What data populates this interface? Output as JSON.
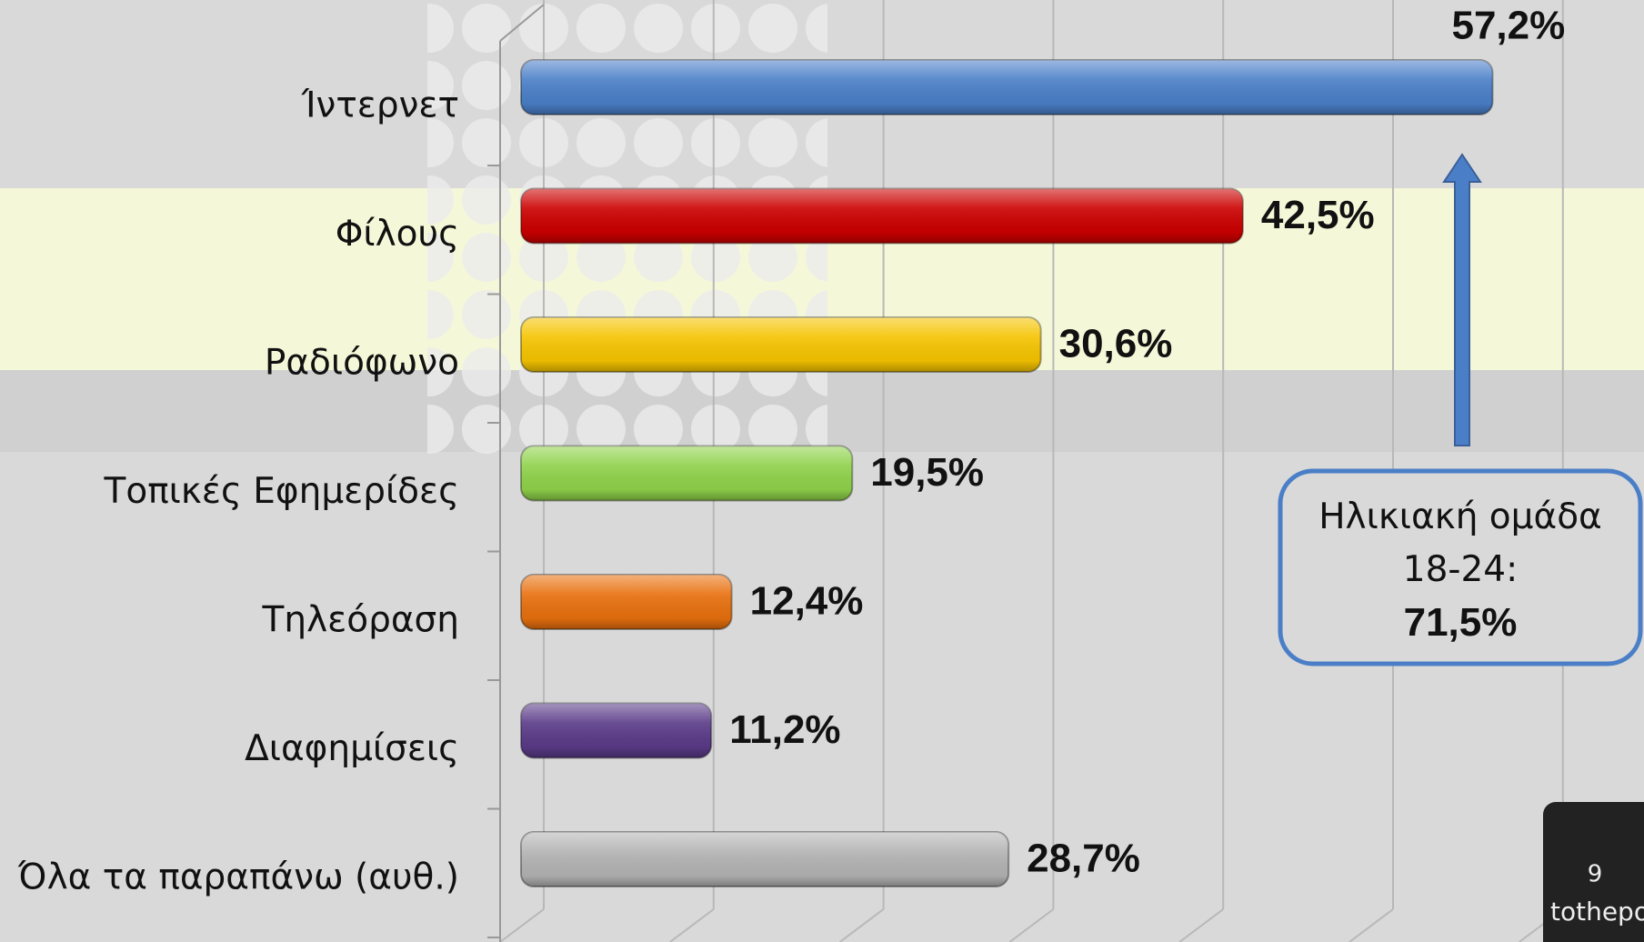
{
  "chart_data": {
    "type": "bar",
    "orientation": "horizontal",
    "categories": [
      "Ίντερνετ",
      "Φίλους",
      "Ραδιόφωνο",
      "Τοπικές Εφημερίδες",
      "Τηλεόραση",
      "Διαφημίσεις",
      "Όλα τα παραπάνω (αυθ.)"
    ],
    "values": [
      57.2,
      42.5,
      30.6,
      19.5,
      12.4,
      11.2,
      28.7
    ],
    "value_labels": [
      "57,2%",
      "42,5%",
      "30,6%",
      "19,5%",
      "12,4%",
      "11,2%",
      "28,7%"
    ],
    "colors": [
      "#4a7fc8",
      "#cc0000",
      "#f5c400",
      "#8fd24a",
      "#e8700e",
      "#5a3b88",
      "#b3b3b3"
    ],
    "xlim": [
      0,
      60
    ],
    "xticks": [
      0,
      10,
      20,
      30,
      40,
      50,
      60
    ],
    "grid": true,
    "annotation": {
      "text": "Ηλικιακή ομάδα 18-24:",
      "value_label": "71,5%"
    },
    "page_number": "9",
    "logo": "tothepoint"
  }
}
